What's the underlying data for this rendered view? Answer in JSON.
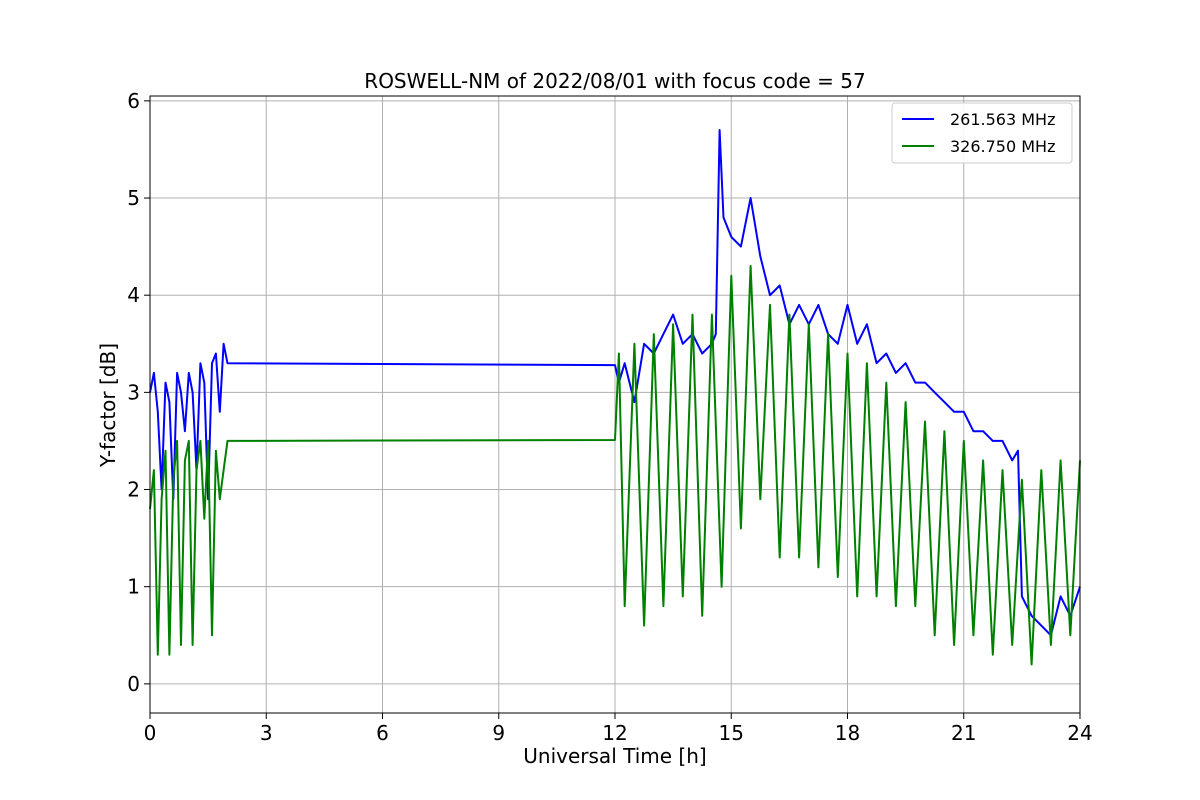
{
  "chart_data": {
    "type": "line",
    "title": "ROSWELL-NM of 2022/08/01 with focus code = 57",
    "xlabel": "Universal Time [h]",
    "ylabel": "Y-factor [dB]",
    "xlim": [
      0,
      24
    ],
    "ylim": [
      -0.3,
      6.05
    ],
    "xticks": [
      0,
      3,
      6,
      9,
      12,
      15,
      18,
      21,
      24
    ],
    "yticks": [
      0,
      1,
      2,
      3,
      4,
      5,
      6
    ],
    "grid": true,
    "legend_position": "top-right",
    "series": [
      {
        "name": "261.563 MHz",
        "color": "#0000ff",
        "x": [
          0,
          0.1,
          0.2,
          0.3,
          0.4,
          0.5,
          0.6,
          0.7,
          0.8,
          0.9,
          1.0,
          1.1,
          1.2,
          1.3,
          1.4,
          1.5,
          1.6,
          1.7,
          1.8,
          1.9,
          2.0,
          12.0,
          12.1,
          12.25,
          12.5,
          12.75,
          13.0,
          13.25,
          13.5,
          13.75,
          14.0,
          14.25,
          14.5,
          14.6,
          14.7,
          14.8,
          15.0,
          15.25,
          15.5,
          15.75,
          16.0,
          16.25,
          16.5,
          16.75,
          17.0,
          17.25,
          17.5,
          17.75,
          18.0,
          18.25,
          18.5,
          18.75,
          19.0,
          19.25,
          19.5,
          19.75,
          20.0,
          20.25,
          20.5,
          20.75,
          21.0,
          21.25,
          21.5,
          21.75,
          22.0,
          22.25,
          22.4,
          22.5,
          22.75,
          23.0,
          23.25,
          23.5,
          23.75,
          24.0
        ],
        "y": [
          3.0,
          3.2,
          2.8,
          2.0,
          3.1,
          2.9,
          1.9,
          3.2,
          3.0,
          2.6,
          3.2,
          3.0,
          2.2,
          3.3,
          3.1,
          1.9,
          3.3,
          3.4,
          2.8,
          3.5,
          3.3,
          3.28,
          3.1,
          3.3,
          2.9,
          3.5,
          3.4,
          3.6,
          3.8,
          3.5,
          3.6,
          3.4,
          3.5,
          3.6,
          5.7,
          4.8,
          4.6,
          4.5,
          5.0,
          4.4,
          4.0,
          4.1,
          3.7,
          3.9,
          3.7,
          3.9,
          3.6,
          3.5,
          3.9,
          3.5,
          3.7,
          3.3,
          3.4,
          3.2,
          3.3,
          3.1,
          3.1,
          3.0,
          2.9,
          2.8,
          2.8,
          2.6,
          2.6,
          2.5,
          2.5,
          2.3,
          2.4,
          0.9,
          0.7,
          0.6,
          0.5,
          0.9,
          0.7,
          1.0
        ]
      },
      {
        "name": "326.750 MHz",
        "color": "#008000",
        "x": [
          0,
          0.1,
          0.2,
          0.3,
          0.4,
          0.5,
          0.6,
          0.7,
          0.8,
          0.9,
          1.0,
          1.1,
          1.2,
          1.3,
          1.4,
          1.5,
          1.6,
          1.7,
          1.8,
          1.9,
          2.0,
          12.0,
          12.1,
          12.25,
          12.5,
          12.75,
          13.0,
          13.25,
          13.5,
          13.75,
          14.0,
          14.25,
          14.5,
          14.75,
          15.0,
          15.25,
          15.5,
          15.75,
          16.0,
          16.25,
          16.5,
          16.75,
          17.0,
          17.25,
          17.5,
          17.75,
          18.0,
          18.25,
          18.5,
          18.75,
          19.0,
          19.25,
          19.5,
          19.75,
          20.0,
          20.25,
          20.5,
          20.75,
          21.0,
          21.25,
          21.5,
          21.75,
          22.0,
          22.25,
          22.5,
          22.75,
          23.0,
          23.25,
          23.5,
          23.75,
          24.0
        ],
        "y": [
          1.8,
          2.2,
          0.3,
          1.9,
          2.4,
          0.3,
          2.1,
          2.5,
          0.4,
          2.3,
          2.5,
          0.4,
          2.2,
          2.5,
          1.7,
          2.5,
          0.5,
          2.4,
          1.9,
          2.2,
          2.5,
          2.51,
          3.4,
          0.8,
          3.5,
          0.6,
          3.6,
          0.8,
          3.7,
          0.9,
          3.8,
          0.7,
          3.8,
          1.0,
          4.2,
          1.6,
          4.3,
          1.9,
          3.9,
          1.3,
          3.8,
          1.3,
          3.7,
          1.2,
          3.6,
          1.1,
          3.4,
          0.9,
          3.3,
          0.9,
          3.1,
          0.8,
          2.9,
          0.8,
          2.7,
          0.5,
          2.6,
          0.4,
          2.5,
          0.5,
          2.3,
          0.3,
          2.2,
          0.4,
          2.1,
          0.2,
          2.2,
          0.4,
          2.3,
          0.5,
          2.3
        ]
      }
    ]
  }
}
